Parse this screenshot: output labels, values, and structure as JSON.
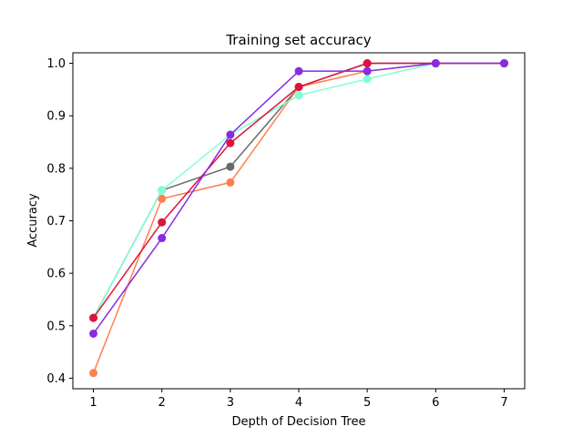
{
  "chart_data": {
    "type": "line",
    "title": "Training set accuracy",
    "xlabel": "Depth of Decision Tree",
    "ylabel": "Accuracy",
    "x": [
      1,
      2,
      3,
      4,
      5,
      6,
      7
    ],
    "xticks": [
      "1",
      "2",
      "3",
      "4",
      "5",
      "6",
      "7"
    ],
    "yticks": [
      "0.4",
      "0.5",
      "0.6",
      "0.7",
      "0.8",
      "0.9",
      "1.0"
    ],
    "xlim": [
      0.7,
      7.3
    ],
    "ylim": [
      0.38,
      1.02
    ],
    "grid": false,
    "series": [
      {
        "color": "#696969",
        "values": [
          0.515,
          0.758,
          0.803,
          0.955,
          1.0,
          1.0,
          1.0
        ]
      },
      {
        "color": "#ff7f50",
        "values": [
          0.41,
          0.742,
          0.773,
          0.955,
          0.985,
          1.0,
          1.0
        ]
      },
      {
        "color": "#7fffd4",
        "values": [
          0.515,
          0.758,
          0.864,
          0.939,
          0.97,
          1.0,
          1.0
        ]
      },
      {
        "color": "#dc143c",
        "values": [
          0.515,
          0.697,
          0.848,
          0.955,
          1.0,
          1.0,
          1.0
        ]
      },
      {
        "color": "#8a2be2",
        "values": [
          0.485,
          0.667,
          0.864,
          0.985,
          0.985,
          1.0,
          1.0
        ]
      }
    ]
  }
}
